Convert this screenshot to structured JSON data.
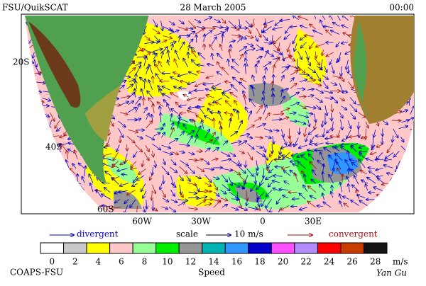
{
  "header": {
    "left": "FSU/QuikSCAT",
    "center": "28 March 2005",
    "right": "00:00"
  },
  "lat_labels": [
    "20S",
    "40S",
    "60S"
  ],
  "lon_labels": [
    "60W",
    "30W",
    "0",
    "30E"
  ],
  "legend": {
    "divergent": "divergent",
    "scale": "scale",
    "scale_value": "10 m/s",
    "convergent": "convergent"
  },
  "colorbar": {
    "ticks": [
      0,
      2,
      4,
      6,
      8,
      10,
      12,
      14,
      16,
      18,
      20,
      22,
      24,
      26,
      28
    ],
    "unit": "m/s",
    "label": "Speed",
    "colors": [
      "#ffffff",
      "#c8c8c8",
      "#ffff00",
      "#ffc8c8",
      "#96ff96",
      "#00f000",
      "#969696",
      "#00b4b4",
      "#3296ff",
      "#0000c8",
      "#ff50ff",
      "#b48cff",
      "#ff0000",
      "#c83c00",
      "#141414"
    ]
  },
  "footer": {
    "left": "COAPS-FSU",
    "right": "Yan Gu"
  }
}
